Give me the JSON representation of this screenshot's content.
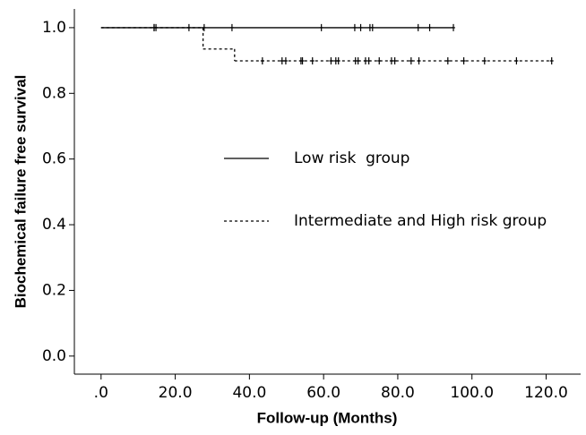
{
  "chart_data": {
    "type": "km",
    "x_label": "Follow-up (Months)",
    "y_label": "Biochemical failure free survival",
    "xlim": [
      -7.2,
      129.3
    ],
    "ylim": [
      -0.055,
      1.057
    ],
    "xticks": [
      {
        "value": 0,
        "label": ".0"
      },
      {
        "value": 20,
        "label": "20.0"
      },
      {
        "value": 40,
        "label": "40.0"
      },
      {
        "value": 60,
        "label": "60.0"
      },
      {
        "value": 80,
        "label": "80.0"
      },
      {
        "value": 100,
        "label": "100.0"
      },
      {
        "value": 120,
        "label": "120.0"
      }
    ],
    "yticks": [
      {
        "value": 0,
        "label": "0.0"
      },
      {
        "value": 0.2,
        "label": "0.2"
      },
      {
        "value": 0.4,
        "label": "0.4"
      },
      {
        "value": 0.6,
        "label": "0.6"
      },
      {
        "value": 0.8,
        "label": "0.8"
      },
      {
        "value": 1,
        "label": "1.0"
      }
    ],
    "series": [
      {
        "name": "Low risk  group",
        "color": "#000000",
        "line_style": "solid",
        "x": [
          0,
          95
        ],
        "values": [
          1,
          1
        ],
        "censored": {
          "x": [
            14.3,
            14.8,
            23.7,
            27.8,
            35.3,
            59.4,
            68.4,
            70,
            72.5,
            73.2,
            85.5,
            88.6,
            95
          ],
          "values": [
            1,
            1,
            1,
            1,
            1,
            1,
            1,
            1,
            1,
            1,
            1,
            1,
            1
          ]
        }
      },
      {
        "name": "Intermediate and High risk group",
        "color": "#000000",
        "line_style": "dashed",
        "x": [
          0,
          27.5,
          36,
          121.5
        ],
        "values": [
          1,
          0.935,
          0.899,
          0.899
        ],
        "censored": {
          "x": [
            14.3,
            43.5,
            48.8,
            49.8,
            53.9,
            54.3,
            57,
            62,
            63.3,
            64,
            68.6,
            69.3,
            71.3,
            72.2,
            75,
            78.3,
            79.2,
            83.6,
            85.7,
            93.5,
            97.8,
            103.4,
            112,
            121.5
          ],
          "values": [
            1,
            0.899,
            0.899,
            0.899,
            0.899,
            0.899,
            0.899,
            0.899,
            0.899,
            0.899,
            0.899,
            0.899,
            0.899,
            0.899,
            0.899,
            0.899,
            0.899,
            0.899,
            0.899,
            0.899,
            0.899,
            0.899,
            0.899,
            0.899
          ]
        }
      }
    ]
  }
}
